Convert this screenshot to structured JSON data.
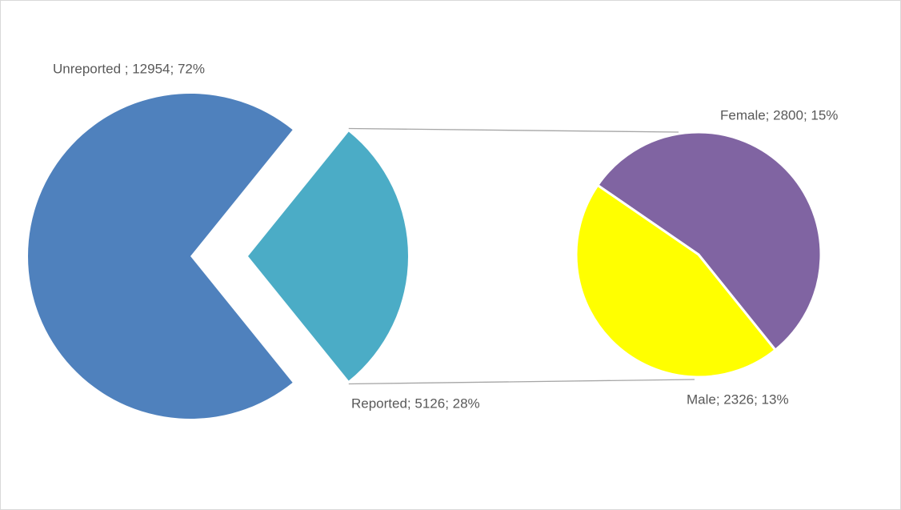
{
  "chart_data": {
    "type": "pie-of-pie",
    "values": [
      12954,
      5126
    ],
    "value_labels": [
      "Unreported ; 12954; 72%",
      "Reported; 5126; 28%"
    ],
    "colors": [
      "#4f81bd",
      "#4bacc6"
    ],
    "secondary": {
      "values": [
        2800,
        2326
      ],
      "value_labels": [
        "Female; 2800; 15%",
        "Male; 2326; 13%"
      ],
      "colors": [
        "#8064a2",
        "#ffff00"
      ]
    }
  }
}
